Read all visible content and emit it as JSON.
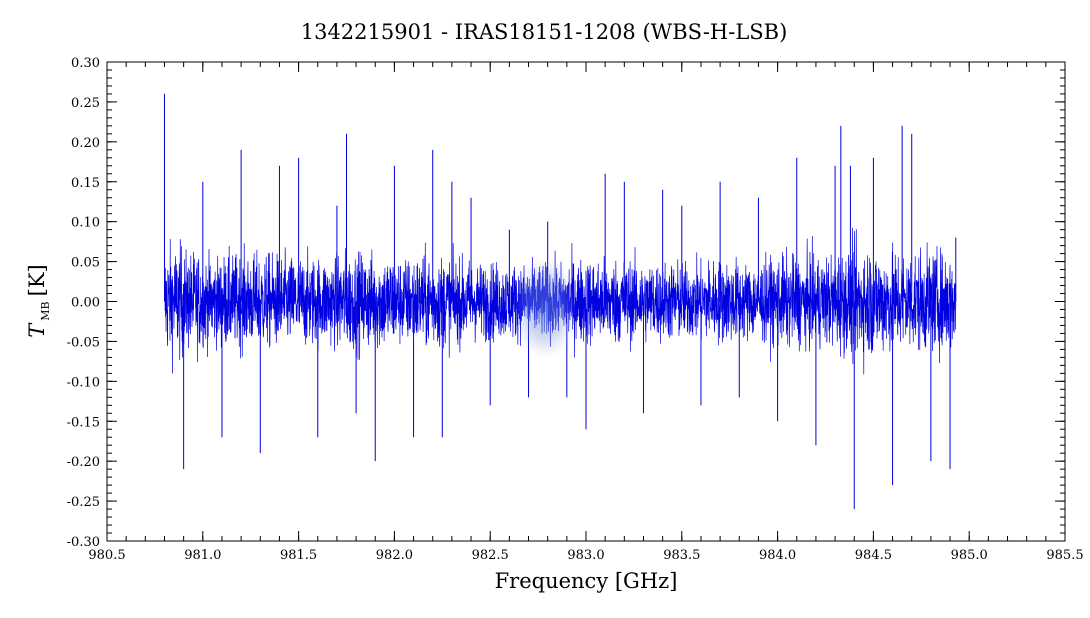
{
  "chart_data": {
    "type": "line",
    "title": "1342215901 - IRAS18151-1208 (WBS-H-LSB)",
    "xlabel": "Frequency [GHz]",
    "ylabel_main": "T",
    "ylabel_sub": "MB",
    "ylabel_unit": "[K]",
    "xlim": [
      980.5,
      985.5
    ],
    "ylim": [
      -0.3,
      0.3
    ],
    "x_ticks": [
      "980.5",
      "981.0",
      "981.5",
      "982.0",
      "982.5",
      "983.0",
      "983.5",
      "984.0",
      "984.5",
      "985.0",
      "985.5"
    ],
    "y_ticks": [
      "-0.30",
      "-0.25",
      "-0.20",
      "-0.15",
      "-0.10",
      "-0.05",
      "0.00",
      "0.05",
      "0.10",
      "0.15",
      "0.20",
      "0.25",
      "0.30"
    ],
    "grid": false,
    "series": [
      {
        "color": "#0000e0",
        "x": [
          980.8,
          980.9,
          981.0,
          981.1,
          981.2,
          981.3,
          981.4,
          981.5,
          981.6,
          981.7,
          981.75,
          981.8,
          981.9,
          982.0,
          982.1,
          982.2,
          982.25,
          982.3,
          982.4,
          982.5,
          982.6,
          982.7,
          982.8,
          982.9,
          983.0,
          983.1,
          983.2,
          983.3,
          983.4,
          983.5,
          983.6,
          983.7,
          983.8,
          983.9,
          984.0,
          984.1,
          984.2,
          984.3,
          984.33,
          984.38,
          984.4,
          984.5,
          984.6,
          984.65,
          984.7,
          984.8,
          984.9,
          984.93
        ],
        "y": [
          0.26,
          -0.21,
          0.15,
          -0.17,
          0.19,
          -0.19,
          0.17,
          0.18,
          -0.17,
          0.12,
          0.21,
          -0.14,
          -0.2,
          0.17,
          -0.17,
          0.19,
          -0.17,
          0.15,
          0.13,
          -0.13,
          0.09,
          -0.12,
          0.1,
          -0.12,
          -0.16,
          0.16,
          0.15,
          -0.14,
          0.14,
          0.12,
          -0.13,
          0.15,
          -0.12,
          0.13,
          -0.15,
          0.18,
          -0.18,
          0.17,
          0.22,
          0.17,
          -0.26,
          0.18,
          -0.23,
          0.22,
          0.21,
          -0.2,
          -0.21,
          0.08
        ]
      }
    ]
  }
}
